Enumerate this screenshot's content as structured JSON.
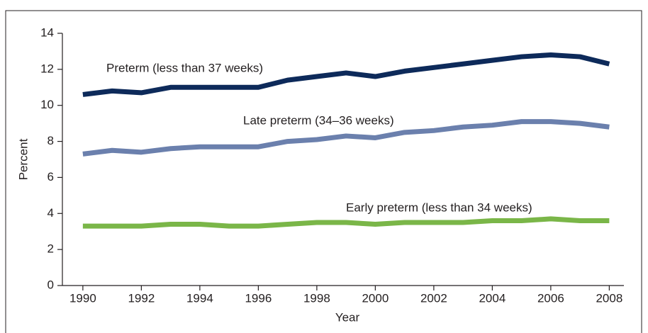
{
  "chart_data": {
    "type": "line",
    "x_label": "Year",
    "y_label": "Percent",
    "x": [
      1990,
      1991,
      1992,
      1993,
      1994,
      1995,
      1996,
      1997,
      1998,
      1999,
      2000,
      2001,
      2002,
      2003,
      2004,
      2005,
      2006,
      2007,
      2008
    ],
    "series": [
      {
        "name": "Preterm (less than 37 weeks)",
        "color": "#0d2a5a",
        "values": [
          10.6,
          10.8,
          10.7,
          11.0,
          11.0,
          11.0,
          11.0,
          11.4,
          11.6,
          11.8,
          11.6,
          11.9,
          12.1,
          12.3,
          12.5,
          12.7,
          12.8,
          12.7,
          12.3
        ]
      },
      {
        "name": "Late preterm (34–36 weeks)",
        "color": "#6b80ad",
        "values": [
          7.3,
          7.5,
          7.4,
          7.6,
          7.7,
          7.7,
          7.7,
          8.0,
          8.1,
          8.3,
          8.2,
          8.5,
          8.6,
          8.8,
          8.9,
          9.1,
          9.1,
          9.0,
          8.8
        ]
      },
      {
        "name": "Early preterm (less than 34 weeks)",
        "color": "#7ab648",
        "values": [
          3.3,
          3.3,
          3.3,
          3.4,
          3.4,
          3.3,
          3.3,
          3.4,
          3.5,
          3.5,
          3.4,
          3.5,
          3.5,
          3.5,
          3.6,
          3.6,
          3.7,
          3.6,
          3.6
        ]
      }
    ],
    "xlim": [
      1989.3,
      2008.5
    ],
    "xticks": [
      1990,
      1992,
      1994,
      1996,
      1998,
      2000,
      2002,
      2004,
      2006,
      2008
    ],
    "ylim": [
      0,
      14
    ],
    "yticks": [
      0,
      2,
      4,
      6,
      8,
      10,
      12,
      14
    ]
  }
}
